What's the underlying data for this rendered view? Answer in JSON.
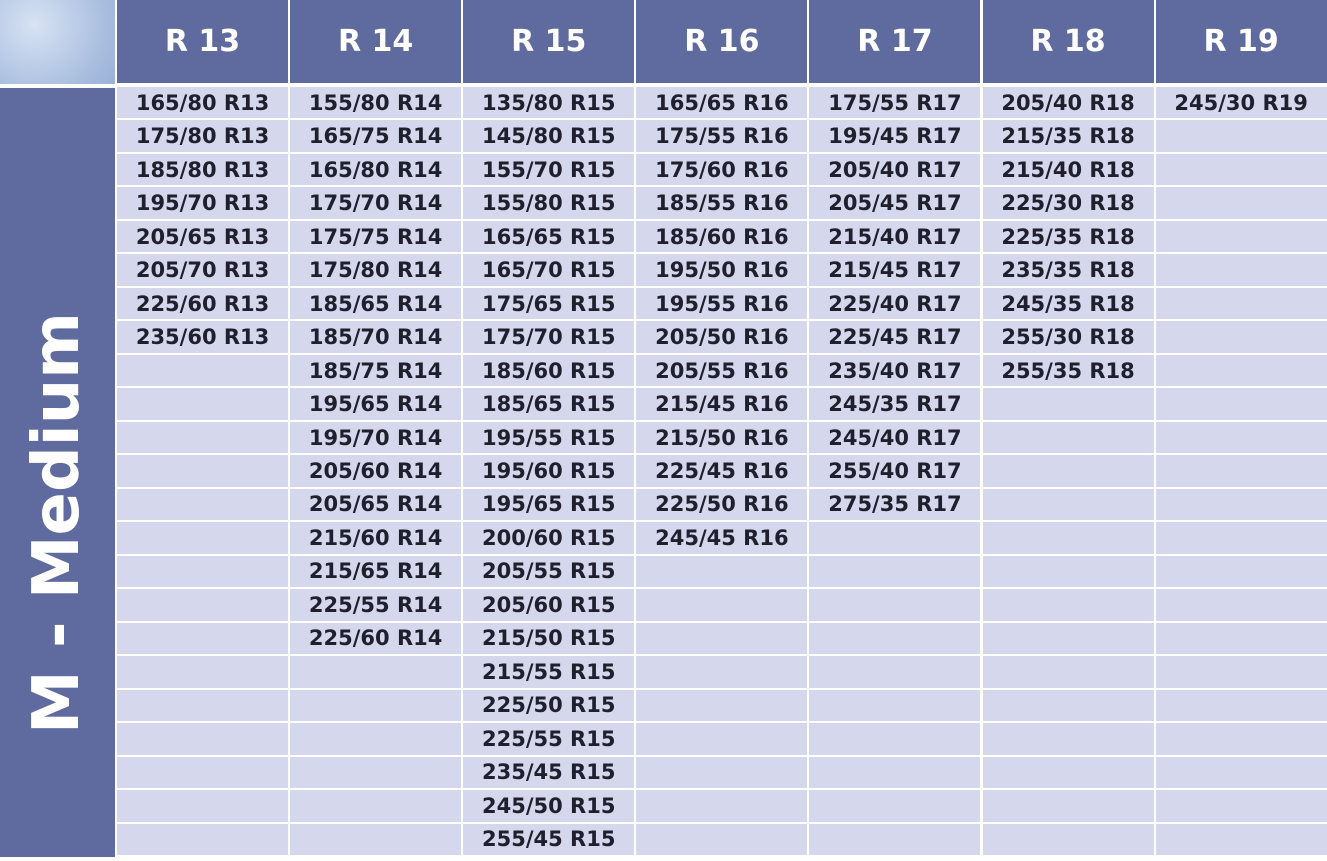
{
  "table": {
    "side_label": "M - Medium",
    "headers": [
      "R 13",
      "R 14",
      "R 15",
      "R 16",
      "R 17",
      "R 18",
      "R 19"
    ],
    "columns": [
      [
        "165/80 R13",
        "175/80 R13",
        "185/80 R13",
        "195/70 R13",
        "205/65 R13",
        "205/70 R13",
        "225/60 R13",
        "235/60 R13"
      ],
      [
        "155/80 R14",
        "165/75 R14",
        "165/80 R14",
        "175/70 R14",
        "175/75 R14",
        "175/80 R14",
        "185/65 R14",
        "185/70 R14",
        "185/75 R14",
        "195/65 R14",
        "195/70 R14",
        "205/60 R14",
        "205/65 R14",
        "215/60 R14",
        "215/65 R14",
        "225/55 R14",
        "225/60 R14"
      ],
      [
        "135/80 R15",
        "145/80 R15",
        "155/70 R15",
        "155/80 R15",
        "165/65 R15",
        "165/70 R15",
        "175/65 R15",
        "175/70 R15",
        "185/60 R15",
        "185/65 R15",
        "195/55 R15",
        "195/60 R15",
        "195/65 R15",
        "200/60 R15",
        "205/55 R15",
        "205/60 R15",
        "215/50 R15",
        "215/55 R15",
        "225/50 R15",
        "225/55 R15",
        "235/45 R15",
        "245/50 R15",
        "255/45 R15"
      ],
      [
        "165/65 R16",
        "175/55 R16",
        "175/60 R16",
        "185/55 R16",
        "185/60 R16",
        "195/50 R16",
        "195/55 R16",
        "205/50 R16",
        "205/55 R16",
        "215/45 R16",
        "215/50 R16",
        "225/45 R16",
        "225/50 R16",
        "245/45 R16"
      ],
      [
        "175/55 R17",
        "195/45 R17",
        "205/40 R17",
        "205/45 R17",
        "215/40 R17",
        "215/45 R17",
        "225/40 R17",
        "225/45 R17",
        "235/40 R17",
        "245/35 R17",
        "245/40 R17",
        "255/40 R17",
        "275/35 R17"
      ],
      [
        "205/40 R18",
        "215/35 R18",
        "215/40 R18",
        "225/30 R18",
        "225/35 R18",
        "235/35 R18",
        "245/35 R18",
        "255/30 R18",
        "255/35 R18"
      ],
      [
        "245/30 R19"
      ]
    ]
  }
}
